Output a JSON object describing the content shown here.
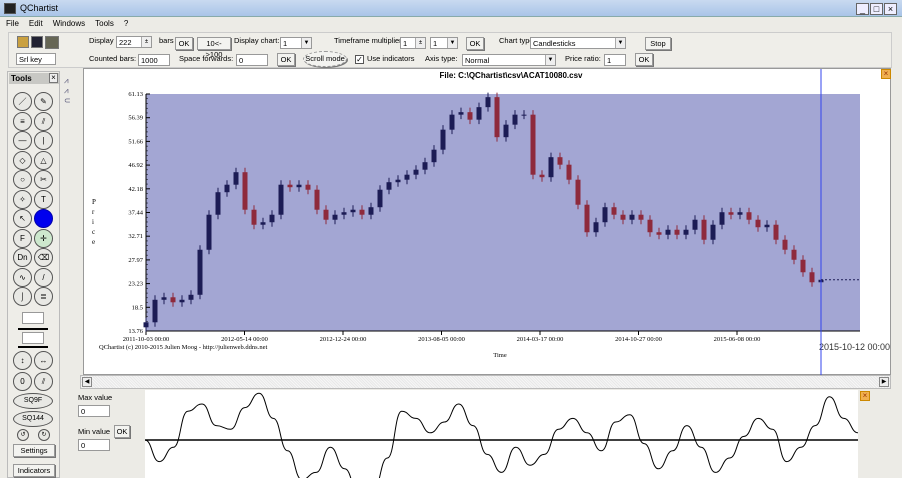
{
  "window": {
    "title": "QChartist",
    "minimize": "_",
    "maximize": "□",
    "close": "×"
  },
  "menu": [
    "File",
    "Edit",
    "Windows",
    "Tools",
    "?"
  ],
  "toolbar": {
    "serial_key": "Srl key",
    "display_label": "Display",
    "display_value": "222",
    "bars_label": "bars",
    "ok": "OK",
    "toggle_label": "10<->100",
    "display_chart_label": "Display chart:",
    "display_chart_value": "1",
    "timeframe_label": "Timeframe multiplier:",
    "timeframe_value": "1",
    "timeframe_select": "1",
    "chart_type_label": "Chart type:",
    "chart_type_value": "Candlesticks",
    "stop_label": "Stop",
    "counted_bars_label": "Counted bars:",
    "counted_bars_value": "1000",
    "space_forwards_label": "Space forwards:",
    "space_forwards_value": "0",
    "scroll_mode_label": "Scroll mode",
    "use_indicators_label": "Use indicators",
    "use_indicators_checked": true,
    "axis_type_label": "Axis type:",
    "axis_type_value": "Normal",
    "price_ratio_label": "Price ratio:",
    "price_ratio_value": "1"
  },
  "tools_panel": {
    "title": "Tools",
    "close": "×",
    "sq9f": "SQ9F",
    "sq144": "SQ144",
    "settings": "Settings",
    "indicators": "Indicators",
    "buttons": [
      "line",
      "pencil",
      "fib-lines",
      "parallel",
      "hline",
      "vline",
      "rectangle",
      "triangle",
      "ellipse",
      "scissors",
      "crosshair",
      "text",
      "pointer",
      "color",
      "F",
      "move",
      "Dn",
      "eraser",
      "sine",
      "slash",
      "curve",
      "list"
    ],
    "labels": {
      "text": "T",
      "F": "F",
      "Dn": "Dn"
    },
    "color_value": "#0000ee"
  },
  "chart": {
    "file_title": "File: C:\\QChartist\\csv\\ACAT10080.csv",
    "copyright": "QChartist (c) 2010-2015 Julien Moog - http://julienweb.ddns.net",
    "cursor_date": "2015-10-12 00:00",
    "colors": {
      "background": "#a3a6d3",
      "up": "#1c1c55",
      "down": "#8e2a3c",
      "cursor": "#3344ee"
    }
  },
  "chart_data": {
    "type": "candlestick",
    "ylabel": "Price",
    "xlabel": "Time",
    "ylim": [
      13.76,
      61.13
    ],
    "y_ticks": [
      "61.13",
      "56.39",
      "51.66",
      "46.92",
      "42.18",
      "37.44",
      "32.71",
      "27.97",
      "23.23",
      "18.5",
      "13.76"
    ],
    "x_ticks": [
      "2011-10-03 00:00",
      "2012-05-14 00:00",
      "2012-12-24 00:00",
      "2013-08-05 00:00",
      "2014-03-17 00:00",
      "2014-10-27 00:00",
      "2015-06-08 00:00"
    ],
    "closes": [
      15.5,
      20,
      20.5,
      19.5,
      20,
      21,
      30,
      37,
      41.5,
      43,
      45.5,
      38,
      35,
      35.5,
      37,
      43,
      42.5,
      43,
      42,
      38,
      36,
      37,
      37.5,
      38,
      37,
      38.5,
      42,
      43.5,
      44,
      45,
      46,
      47.5,
      50,
      54,
      57,
      57.5,
      56,
      58.5,
      60.5,
      52.5,
      55,
      57,
      57,
      45,
      44.5,
      48.5,
      47,
      44,
      39,
      33.5,
      35.5,
      38.5,
      37,
      36,
      37,
      36,
      33.5,
      33,
      34,
      33,
      34,
      36,
      32,
      35,
      37.5,
      37,
      37.5,
      36,
      34.5,
      35,
      32,
      30,
      28,
      25.5,
      23.5,
      24
    ]
  },
  "indicator": {
    "max_label": "Max value",
    "max_value": "0",
    "min_label": "Min value",
    "min_value": "0",
    "ok": "OK",
    "values": [
      0,
      -0.6,
      -0.2,
      0.8,
      1.0,
      0.4,
      0.3,
      0.9,
      1.3,
      0.6,
      -0.3,
      -1.1,
      -0.9,
      -0.2,
      -0.8,
      -1.5,
      -1.4,
      -0.5,
      0.8,
      0.6,
      0.2,
      0.5,
      1.0,
      0.4,
      -0.4,
      -0.9,
      -0.2,
      -0.7,
      -0.4,
      0.3,
      0.6,
      0.2,
      -0.3,
      0.5,
      0.7,
      -0.1,
      -0.8,
      -0.3,
      0.4,
      -0.2,
      -0.9,
      -0.5,
      0.1,
      0.6,
      0.3,
      -0.6,
      -0.2,
      0.4,
      1.2,
      0.6,
      0.2
    ]
  }
}
